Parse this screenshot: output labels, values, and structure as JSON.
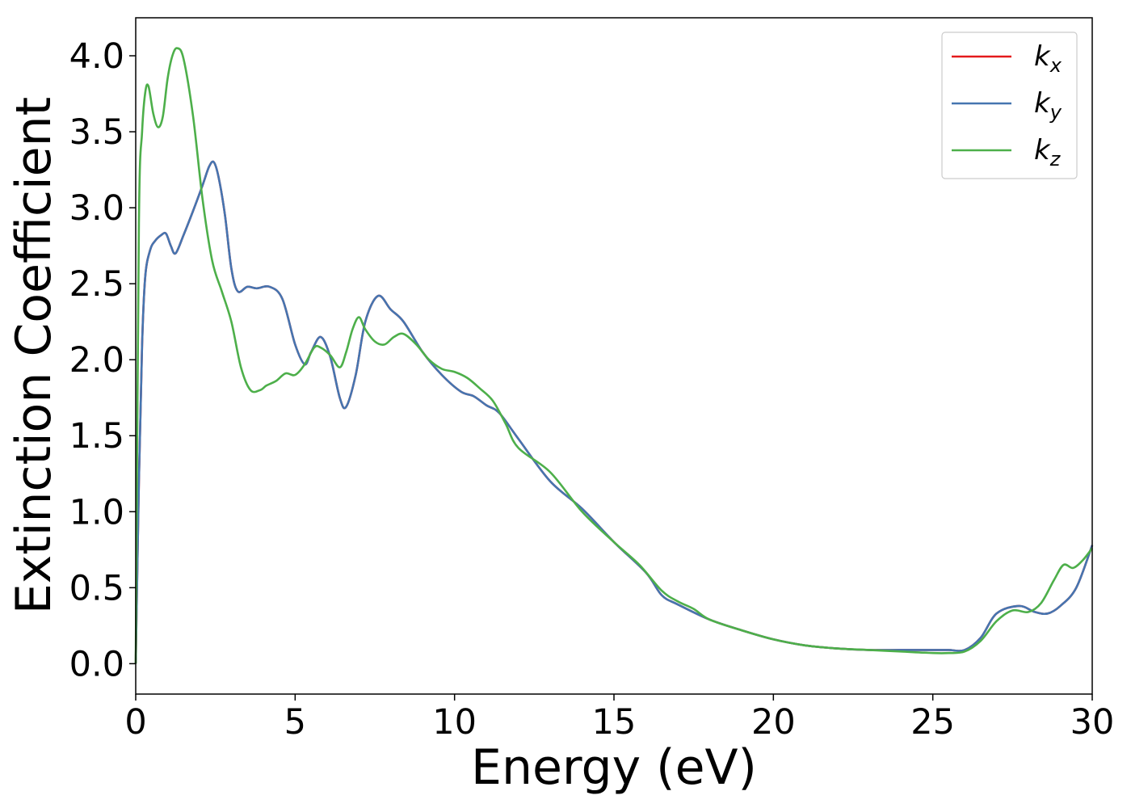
{
  "chart_data": {
    "type": "line",
    "xlabel": "Energy (eV)",
    "ylabel": "Extinction Coefficient",
    "xlim": [
      0,
      30
    ],
    "ylim": [
      -0.2,
      4.25
    ],
    "xticks": [
      0,
      5,
      10,
      15,
      20,
      25,
      30
    ],
    "xtick_labels": [
      "0",
      "5",
      "10",
      "15",
      "20",
      "25",
      "30"
    ],
    "yticks": [
      0.0,
      0.5,
      1.0,
      1.5,
      2.0,
      2.5,
      3.0,
      3.5,
      4.0
    ],
    "ytick_labels": [
      "0.0",
      "0.5",
      "1.0",
      "1.5",
      "2.0",
      "2.5",
      "3.0",
      "3.5",
      "4.0"
    ],
    "grid": false,
    "legend_position": "top-right",
    "series": [
      {
        "name": "k_x",
        "label_base": "k",
        "label_sub": "x",
        "color": "#e41a1c",
        "x": [
          0,
          0.1,
          0.2,
          0.3,
          0.45,
          0.6,
          0.8,
          0.95,
          1.1,
          1.25,
          1.5,
          1.8,
          2.1,
          2.3,
          2.45,
          2.6,
          2.8,
          3.0,
          3.2,
          3.5,
          3.8,
          4.2,
          4.6,
          5.0,
          5.3,
          5.5,
          5.8,
          6.1,
          6.4,
          6.6,
          6.9,
          7.2,
          7.6,
          8.0,
          8.4,
          9.0,
          9.6,
          10.2,
          10.6,
          11.0,
          11.4,
          12.0,
          13.0,
          14.0,
          15.0,
          16.0,
          16.5,
          17.0,
          18.0,
          19.0,
          20.0,
          21.0,
          22.0,
          23.0,
          24.0,
          25.0,
          25.5,
          26.0,
          26.5,
          27.0,
          27.7,
          28.2,
          28.6,
          29.0,
          29.5,
          30.0
        ],
        "y": [
          0.0,
          1.2,
          2.1,
          2.55,
          2.72,
          2.78,
          2.82,
          2.83,
          2.75,
          2.7,
          2.82,
          2.98,
          3.15,
          3.27,
          3.3,
          3.2,
          2.95,
          2.6,
          2.45,
          2.48,
          2.47,
          2.48,
          2.4,
          2.1,
          1.97,
          2.05,
          2.15,
          2.02,
          1.75,
          1.69,
          1.9,
          2.25,
          2.42,
          2.33,
          2.25,
          2.05,
          1.9,
          1.79,
          1.76,
          1.7,
          1.65,
          1.48,
          1.2,
          1.02,
          0.8,
          0.6,
          0.45,
          0.39,
          0.29,
          0.22,
          0.16,
          0.12,
          0.1,
          0.09,
          0.09,
          0.09,
          0.09,
          0.09,
          0.17,
          0.33,
          0.38,
          0.34,
          0.33,
          0.38,
          0.5,
          0.78
        ]
      },
      {
        "name": "k_y",
        "label_base": "k",
        "label_sub": "y",
        "color": "#4575b0",
        "x": [
          0,
          0.1,
          0.2,
          0.3,
          0.45,
          0.6,
          0.8,
          0.95,
          1.1,
          1.25,
          1.5,
          1.8,
          2.1,
          2.3,
          2.45,
          2.6,
          2.8,
          3.0,
          3.2,
          3.5,
          3.8,
          4.2,
          4.6,
          5.0,
          5.3,
          5.5,
          5.8,
          6.1,
          6.4,
          6.6,
          6.9,
          7.2,
          7.6,
          8.0,
          8.4,
          9.0,
          9.6,
          10.2,
          10.6,
          11.0,
          11.4,
          12.0,
          13.0,
          14.0,
          15.0,
          16.0,
          16.5,
          17.0,
          18.0,
          19.0,
          20.0,
          21.0,
          22.0,
          23.0,
          24.0,
          25.0,
          25.5,
          26.0,
          26.5,
          27.0,
          27.7,
          28.2,
          28.6,
          29.0,
          29.5,
          30.0
        ],
        "y": [
          0.0,
          1.2,
          2.1,
          2.55,
          2.72,
          2.78,
          2.82,
          2.83,
          2.75,
          2.7,
          2.82,
          2.98,
          3.15,
          3.27,
          3.3,
          3.2,
          2.95,
          2.6,
          2.45,
          2.48,
          2.47,
          2.48,
          2.4,
          2.1,
          1.97,
          2.05,
          2.15,
          2.02,
          1.75,
          1.69,
          1.9,
          2.25,
          2.42,
          2.33,
          2.25,
          2.05,
          1.9,
          1.79,
          1.76,
          1.7,
          1.65,
          1.48,
          1.2,
          1.02,
          0.8,
          0.6,
          0.45,
          0.39,
          0.29,
          0.22,
          0.16,
          0.12,
          0.1,
          0.09,
          0.09,
          0.09,
          0.09,
          0.09,
          0.17,
          0.33,
          0.38,
          0.34,
          0.33,
          0.38,
          0.5,
          0.78
        ]
      },
      {
        "name": "k_z",
        "label_base": "k",
        "label_sub": "z",
        "color": "#4daf4a",
        "x": [
          0,
          0.1,
          0.2,
          0.3,
          0.4,
          0.55,
          0.7,
          0.85,
          1.0,
          1.15,
          1.3,
          1.5,
          1.8,
          2.1,
          2.4,
          2.7,
          3.0,
          3.3,
          3.6,
          3.9,
          4.1,
          4.4,
          4.7,
          5.0,
          5.3,
          5.6,
          5.8,
          6.1,
          6.4,
          6.6,
          6.8,
          7.0,
          7.2,
          7.5,
          7.8,
          8.1,
          8.4,
          8.8,
          9.2,
          9.6,
          10.0,
          10.4,
          10.8,
          11.2,
          11.6,
          12.0,
          13.0,
          14.0,
          15.0,
          15.8,
          16.5,
          17.0,
          17.5,
          18.0,
          19.0,
          20.0,
          21.0,
          22.0,
          23.0,
          24.0,
          25.0,
          25.5,
          26.0,
          26.5,
          27.0,
          27.5,
          28.0,
          28.4,
          28.8,
          29.1,
          29.4,
          29.7,
          30.0
        ],
        "y": [
          0.0,
          2.9,
          3.5,
          3.76,
          3.8,
          3.62,
          3.53,
          3.6,
          3.85,
          4.0,
          4.05,
          3.98,
          3.6,
          3.05,
          2.65,
          2.45,
          2.25,
          1.95,
          1.8,
          1.8,
          1.83,
          1.86,
          1.91,
          1.9,
          1.97,
          2.08,
          2.08,
          2.03,
          1.95,
          2.05,
          2.2,
          2.28,
          2.2,
          2.12,
          2.1,
          2.15,
          2.17,
          2.1,
          2.0,
          1.94,
          1.92,
          1.88,
          1.81,
          1.73,
          1.58,
          1.42,
          1.26,
          1.0,
          0.8,
          0.65,
          0.48,
          0.41,
          0.36,
          0.29,
          0.22,
          0.16,
          0.12,
          0.1,
          0.09,
          0.08,
          0.07,
          0.07,
          0.08,
          0.15,
          0.28,
          0.35,
          0.34,
          0.4,
          0.55,
          0.65,
          0.63,
          0.68,
          0.76
        ]
      }
    ]
  }
}
